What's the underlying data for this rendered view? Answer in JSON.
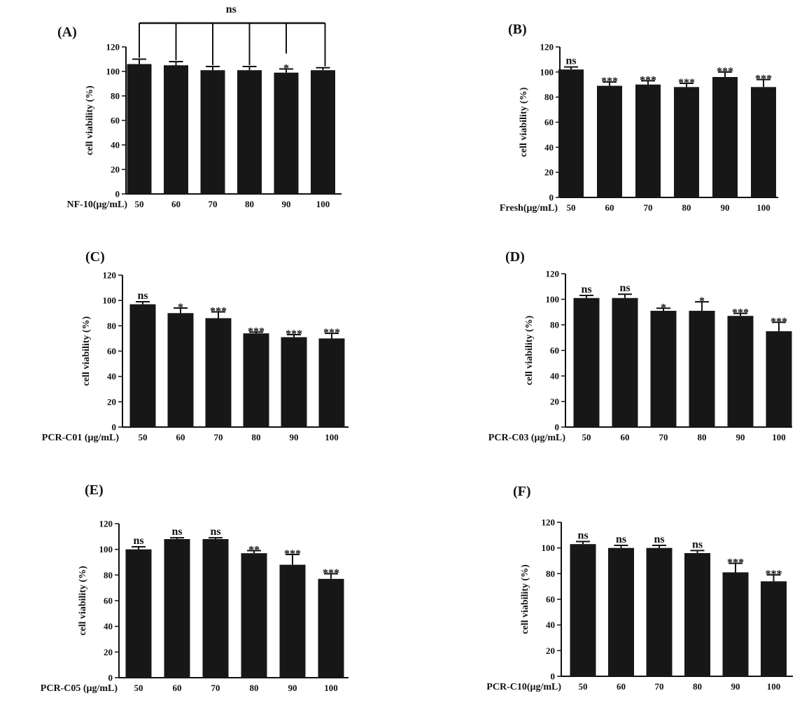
{
  "chart_data": [
    {
      "panel": "(A)",
      "type": "bar",
      "ylabel": "cell viability (%)",
      "xlabel": "NF-10(μg/mL)",
      "categories": [
        "50",
        "60",
        "70",
        "80",
        "90",
        "100"
      ],
      "values": [
        106,
        105,
        101,
        101,
        99,
        101
      ],
      "errors": [
        4,
        3,
        3,
        3,
        3,
        2
      ],
      "significance": [
        "",
        "",
        "",
        "",
        "*",
        ""
      ],
      "bracket_label": "ns",
      "yticks": [
        "0",
        "20",
        "40",
        "60",
        "80",
        "100",
        "120"
      ],
      "ylim": [
        0,
        120
      ]
    },
    {
      "panel": "(B)",
      "type": "bar",
      "ylabel": "cell viability (%)",
      "xlabel": "Fresh(μg/mL)",
      "categories": [
        "50",
        "60",
        "70",
        "80",
        "90",
        "100"
      ],
      "values": [
        102,
        89,
        90,
        88,
        96,
        88
      ],
      "errors": [
        2,
        3,
        3,
        3,
        4,
        6
      ],
      "significance": [
        "ns",
        "***",
        "***",
        "***",
        "***",
        "***"
      ],
      "yticks": [
        "0",
        "20",
        "40",
        "60",
        "80",
        "100",
        "120"
      ],
      "ylim": [
        0,
        120
      ]
    },
    {
      "panel": "(C)",
      "type": "bar",
      "ylabel": "cell viability (%)",
      "xlabel": "PCR-C01 (μg/mL)",
      "categories": [
        "50",
        "60",
        "70",
        "80",
        "90",
        "100"
      ],
      "values": [
        97,
        90,
        86,
        74,
        71,
        70
      ],
      "errors": [
        2,
        4,
        5,
        1,
        2,
        4
      ],
      "significance": [
        "ns",
        "*",
        "***",
        "***",
        "***",
        "***"
      ],
      "yticks": [
        "0",
        "20",
        "40",
        "60",
        "80",
        "100",
        "120"
      ],
      "ylim": [
        0,
        120
      ]
    },
    {
      "panel": "(D)",
      "type": "bar",
      "ylabel": "cell viability (%)",
      "xlabel": "PCR-C03 (μg/mL)",
      "categories": [
        "50",
        "60",
        "70",
        "80",
        "90",
        "100"
      ],
      "values": [
        101,
        101,
        91,
        91,
        87,
        75
      ],
      "errors": [
        2,
        3,
        2,
        7,
        2,
        7
      ],
      "significance": [
        "ns",
        "ns",
        "*",
        "*",
        "***",
        "***"
      ],
      "yticks": [
        "0",
        "20",
        "40",
        "60",
        "80",
        "100",
        "120"
      ],
      "ylim": [
        0,
        120
      ]
    },
    {
      "panel": "(E)",
      "type": "bar",
      "ylabel": "cell viability (%)",
      "xlabel": "PCR-C05 (μg/mL)",
      "categories": [
        "50",
        "60",
        "70",
        "80",
        "90",
        "100"
      ],
      "values": [
        100,
        108,
        108,
        97,
        88,
        77
      ],
      "errors": [
        2,
        1,
        1,
        2,
        8,
        4
      ],
      "significance": [
        "ns",
        "ns",
        "ns",
        "**",
        "***",
        "***"
      ],
      "yticks": [
        "0",
        "20",
        "40",
        "60",
        "80",
        "100",
        "120"
      ],
      "ylim": [
        0,
        120
      ]
    },
    {
      "panel": "(F)",
      "type": "bar",
      "ylabel": "cell viability (%)",
      "xlabel": "PCR-C10(μg/mL)",
      "categories": [
        "50",
        "60",
        "70",
        "80",
        "90",
        "100"
      ],
      "values": [
        103,
        100,
        100,
        96,
        81,
        74
      ],
      "errors": [
        2,
        2,
        2,
        2,
        7,
        5
      ],
      "significance": [
        "ns",
        "ns",
        "ns",
        "ns",
        "***",
        "***"
      ],
      "yticks": [
        "0",
        "20",
        "40",
        "60",
        "80",
        "100",
        "120"
      ],
      "ylim": [
        0,
        120
      ]
    }
  ],
  "colors": {
    "bar": "#171717",
    "axis": "#111111"
  }
}
